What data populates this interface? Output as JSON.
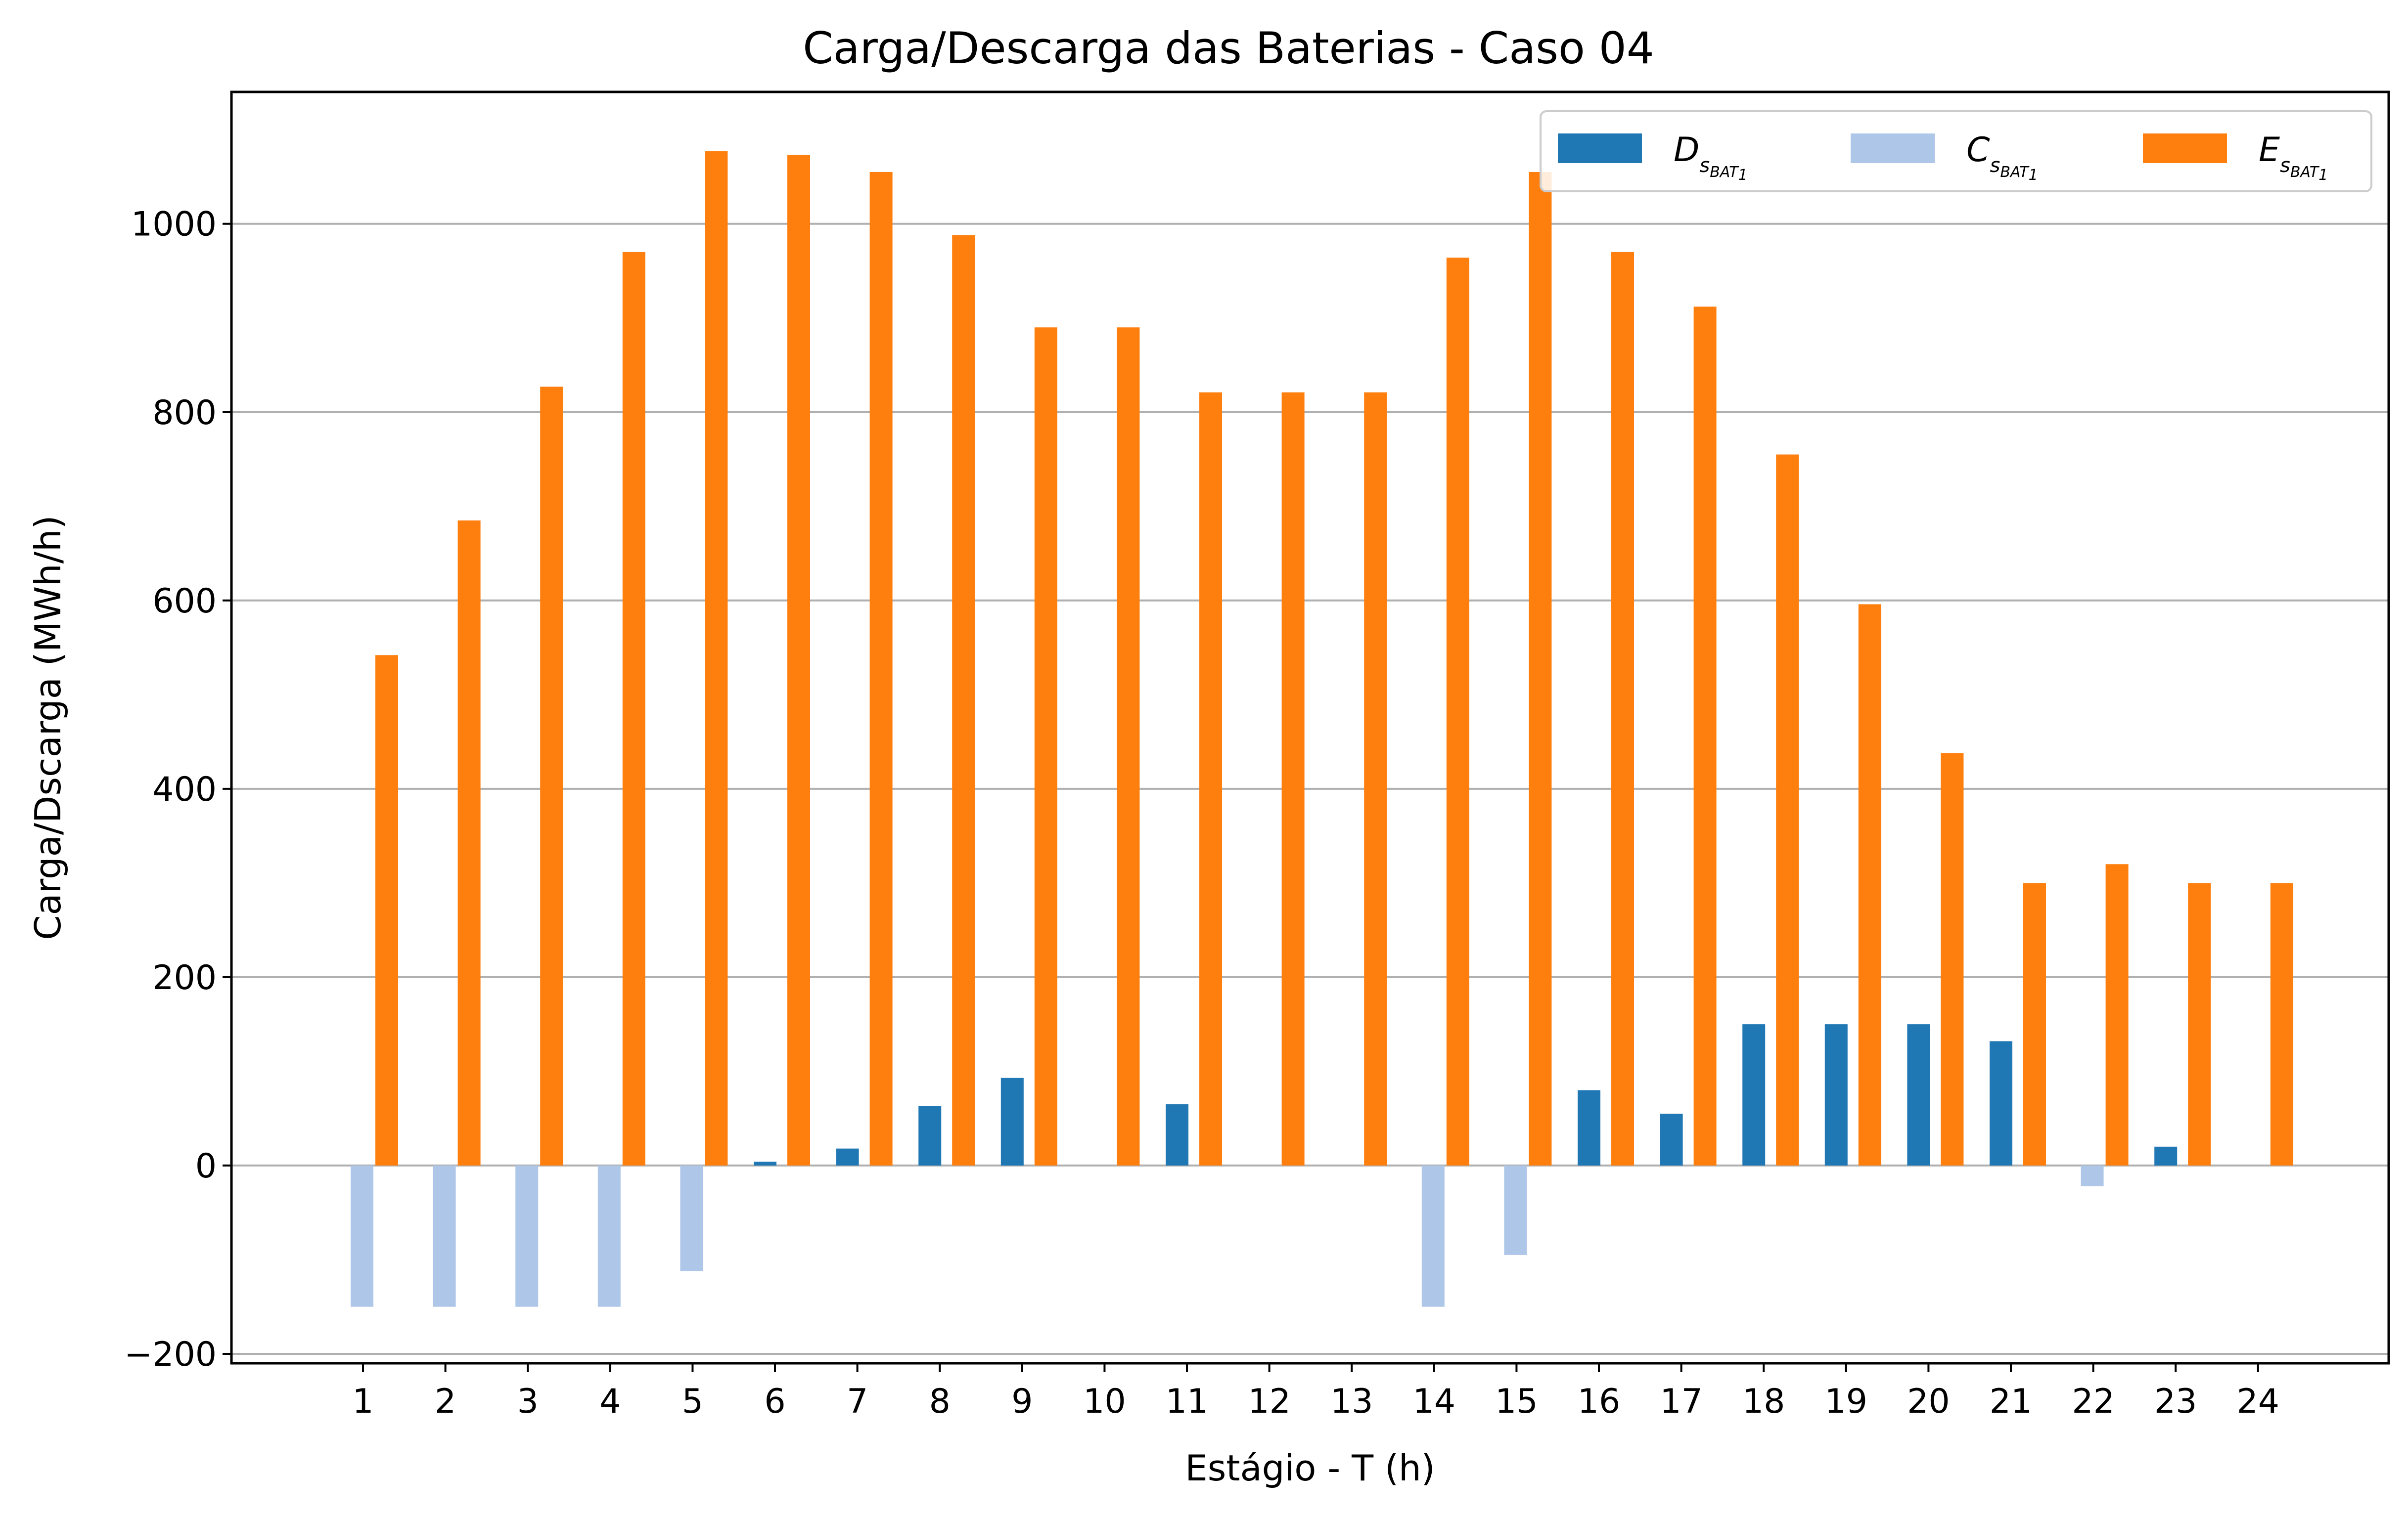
{
  "chart_data": {
    "type": "bar",
    "title": "Carga/Descarga das Baterias - Caso 04",
    "xlabel": "Estágio - T (h)",
    "ylabel": "Carga/Dscarga (MWh/h)",
    "ylim": [
      -210,
      1140
    ],
    "yticks": [
      -200,
      0,
      200,
      400,
      600,
      800,
      1000
    ],
    "ytick_labels": [
      "−200",
      "0",
      "200",
      "400",
      "600",
      "800",
      "1000"
    ],
    "grid": "horizontal",
    "legend_position": "top-right",
    "categories": [
      "1",
      "2",
      "3",
      "4",
      "5",
      "6",
      "7",
      "8",
      "9",
      "10",
      "11",
      "12",
      "13",
      "14",
      "15",
      "16",
      "17",
      "18",
      "19",
      "20",
      "21",
      "22",
      "23",
      "24"
    ],
    "series": [
      {
        "name": "D_{s_{BAT_1}}",
        "legend": {
          "main": "D",
          "sub": "s",
          "subsub": "BAT",
          "subsubsub": "1"
        },
        "color": "#1f77b4",
        "values": [
          0,
          0,
          0,
          0,
          0,
          4,
          18,
          63,
          93,
          0,
          65,
          0,
          0,
          0,
          0,
          80,
          55,
          150,
          150,
          150,
          132,
          0,
          20,
          0
        ]
      },
      {
        "name": "C_{s_{BAT_1}}",
        "legend": {
          "main": "C",
          "sub": "s",
          "subsub": "BAT",
          "subsubsub": "1"
        },
        "color": "#aec7e8",
        "values": [
          -150,
          -150,
          -150,
          -150,
          -112,
          0,
          0,
          0,
          0,
          0,
          0,
          0,
          0,
          -150,
          -95,
          0,
          0,
          0,
          0,
          0,
          0,
          -22,
          0,
          0
        ]
      },
      {
        "name": "E_{s_{BAT_1}}",
        "legend": {
          "main": "E",
          "sub": "s",
          "subsub": "BAT",
          "subsubsub": "1"
        },
        "color": "#ff7f0e",
        "values": [
          542,
          685,
          827,
          970,
          1077,
          1073,
          1055,
          988,
          890,
          890,
          821,
          821,
          821,
          964,
          1055,
          970,
          912,
          755,
          596,
          438,
          300,
          320,
          300,
          300
        ]
      }
    ]
  }
}
